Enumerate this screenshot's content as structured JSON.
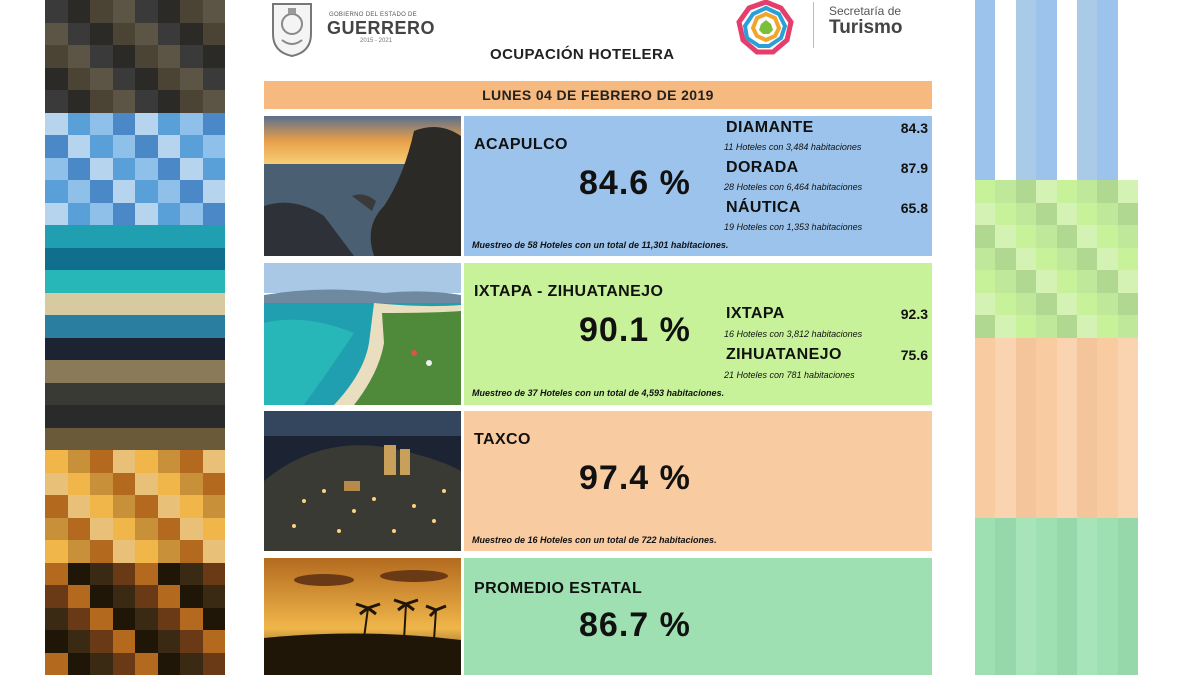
{
  "header": {
    "gov_small": "GOBIERNO DEL ESTADO DE",
    "gov_name": "GUERRERO",
    "gov_years": "2015 - 2021",
    "tourism_small": "Secretaría de",
    "tourism_name": "Turismo",
    "report_title": "OCUPACIÓN HOTELERA"
  },
  "date_label": "LUNES 04 DE FEBRERO DE 2019",
  "destinations": [
    {
      "name": "ACAPULCO",
      "occupancy": "84.6 %",
      "zones": [
        {
          "name": "DIAMANTE",
          "value": "84.3",
          "note": "11 Hoteles con 3,484 habitaciones"
        },
        {
          "name": "DORADA",
          "value": "87.9",
          "note": "28 Hoteles con 6,464 habitaciones"
        },
        {
          "name": "NÁUTICA",
          "value": "65.8",
          "note": "19 Hoteles con 1,353 habitaciones"
        }
      ],
      "sample": "Muestreo de 58 Hoteles con un total de 11,301 habitaciones.",
      "color": "#9cc3eb"
    },
    {
      "name": "IXTAPA - ZIHUATANEJO",
      "occupancy": "90.1 %",
      "zones": [
        {
          "name": "IXTAPA",
          "value": "92.3",
          "note": "16 Hoteles con 3,812 habitaciones"
        },
        {
          "name": "ZIHUATANEJO",
          "value": "75.6",
          "note": "21 Hoteles con 781 habitaciones"
        }
      ],
      "sample": "Muestreo de 37 Hoteles con un total de 4,593 habitaciones.",
      "color": "#c7f29a"
    },
    {
      "name": "TAXCO",
      "occupancy": "97.4 %",
      "sample": "Muestreo de 16 Hoteles con un total de 722 habitaciones.",
      "color": "#f8cba1"
    },
    {
      "name": "PROMEDIO ESTATAL",
      "occupancy": "86.7 %",
      "color": "#9fe0b2"
    }
  ],
  "photos": [
    "acapulco-coast-sunset",
    "ixtapa-bay-aerial",
    "taxco-night-city",
    "palm-trees-sunset"
  ]
}
